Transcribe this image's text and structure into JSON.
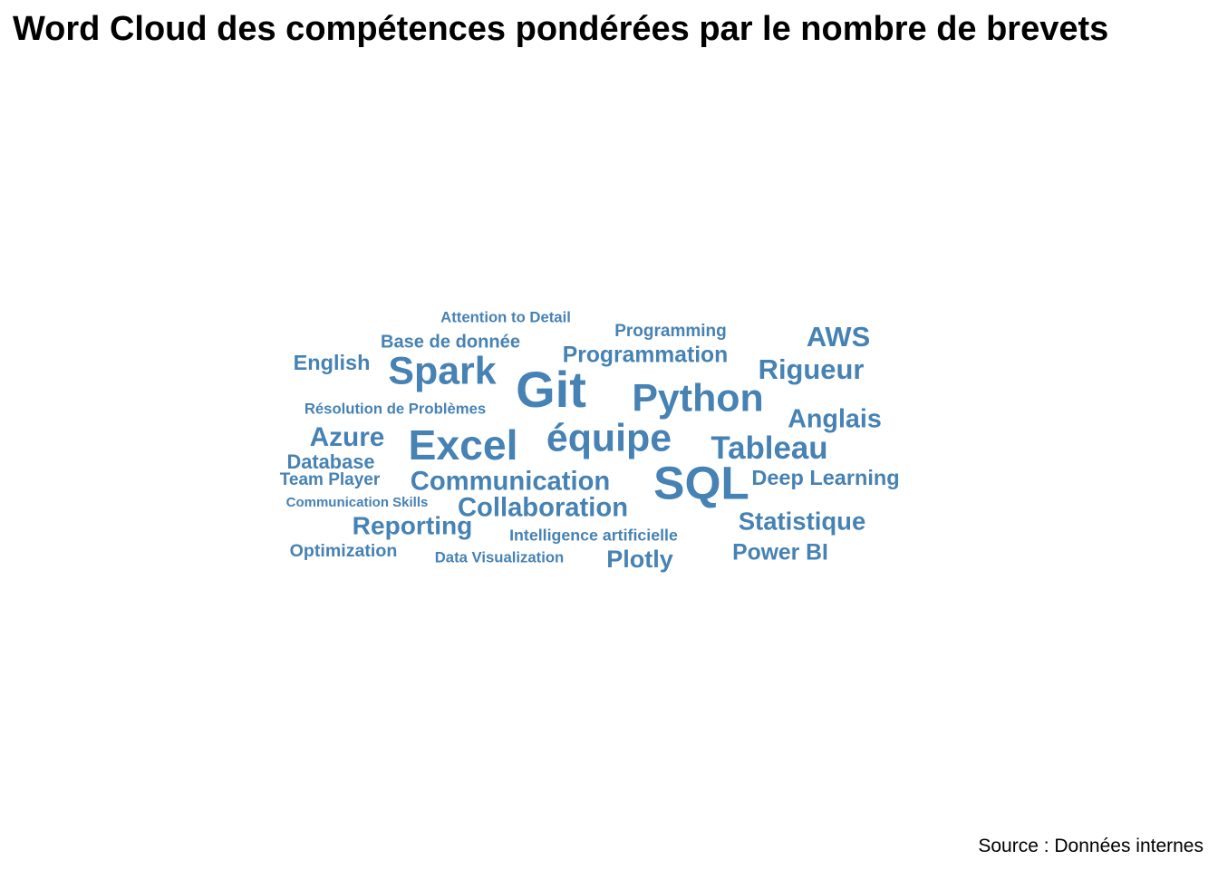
{
  "chart_data": {
    "type": "wordcloud",
    "title": "Word Cloud des compétences pondérées par le nombre de brevets",
    "caption": "Source : Données internes",
    "color": "#4682B4",
    "words": [
      {
        "text": "Git",
        "weight": 100
      },
      {
        "text": "SQL",
        "weight": 92
      },
      {
        "text": "Excel",
        "weight": 83
      },
      {
        "text": "Spark",
        "weight": 77
      },
      {
        "text": "Python",
        "weight": 77
      },
      {
        "text": "équipe",
        "weight": 77
      },
      {
        "text": "Tableau",
        "weight": 63
      },
      {
        "text": "Rigueur",
        "weight": 56
      },
      {
        "text": "AWS",
        "weight": 56
      },
      {
        "text": "Azure",
        "weight": 54
      },
      {
        "text": "Communication",
        "weight": 53
      },
      {
        "text": "Collaboration",
        "weight": 53
      },
      {
        "text": "Anglais",
        "weight": 52
      },
      {
        "text": "Reporting",
        "weight": 51
      },
      {
        "text": "Statistique",
        "weight": 50
      },
      {
        "text": "Plotly",
        "weight": 49
      },
      {
        "text": "Programmation",
        "weight": 45
      },
      {
        "text": "Power BI",
        "weight": 45
      },
      {
        "text": "Deep Learning",
        "weight": 43
      },
      {
        "text": "English",
        "weight": 43
      },
      {
        "text": "Database",
        "weight": 40
      },
      {
        "text": "Base de donnée",
        "weight": 37
      },
      {
        "text": "Optimization",
        "weight": 36
      },
      {
        "text": "Programming",
        "weight": 35
      },
      {
        "text": "Team Player",
        "weight": 35
      },
      {
        "text": "Intelligence artificielle",
        "weight": 33
      },
      {
        "text": "Résolution de Problèmes",
        "weight": 31
      },
      {
        "text": "Attention to Detail",
        "weight": 31
      },
      {
        "text": "Data Visualization",
        "weight": 31
      },
      {
        "text": "Communication Skills",
        "weight": 28
      }
    ]
  }
}
